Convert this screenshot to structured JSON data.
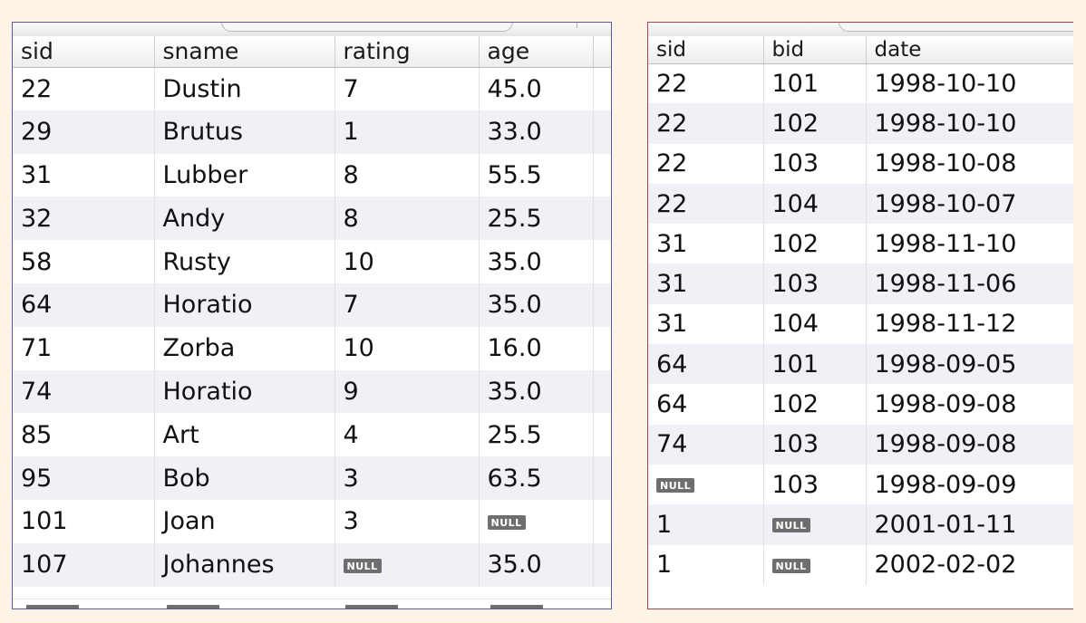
{
  "null_label": "NULL",
  "sailors_table": {
    "columns": [
      "sid",
      "sname",
      "rating",
      "age"
    ],
    "rows": [
      [
        "22",
        "Dustin",
        "7",
        "45.0"
      ],
      [
        "29",
        "Brutus",
        "1",
        "33.0"
      ],
      [
        "31",
        "Lubber",
        "8",
        "55.5"
      ],
      [
        "32",
        "Andy",
        "8",
        "25.5"
      ],
      [
        "58",
        "Rusty",
        "10",
        "35.0"
      ],
      [
        "64",
        "Horatio",
        "7",
        "35.0"
      ],
      [
        "71",
        "Zorba",
        "10",
        "16.0"
      ],
      [
        "74",
        "Horatio",
        "9",
        "35.0"
      ],
      [
        "85",
        "Art",
        "4",
        "25.5"
      ],
      [
        "95",
        "Bob",
        "3",
        "63.5"
      ],
      [
        "101",
        "Joan",
        "3",
        null
      ],
      [
        "107",
        "Johannes",
        null,
        "35.0"
      ]
    ]
  },
  "reserves_table": {
    "columns": [
      "sid",
      "bid",
      "date"
    ],
    "rows": [
      [
        "22",
        "101",
        "1998-10-10"
      ],
      [
        "22",
        "102",
        "1998-10-10"
      ],
      [
        "22",
        "103",
        "1998-10-08"
      ],
      [
        "22",
        "104",
        "1998-10-07"
      ],
      [
        "31",
        "102",
        "1998-11-10"
      ],
      [
        "31",
        "103",
        "1998-11-06"
      ],
      [
        "31",
        "104",
        "1998-11-12"
      ],
      [
        "64",
        "101",
        "1998-09-05"
      ],
      [
        "64",
        "102",
        "1998-09-08"
      ],
      [
        "74",
        "103",
        "1998-09-08"
      ],
      [
        null,
        "103",
        "1998-09-09"
      ],
      [
        "1",
        null,
        "2001-01-11"
      ],
      [
        "1",
        null,
        "2002-02-02"
      ]
    ]
  },
  "colors": {
    "page_background": "#fdf3e6",
    "sailors_border": "#5a5aa8",
    "reserves_border": "#a8454a",
    "row_stripe": "#eff1f7",
    "null_badge": "#6e6e6e"
  }
}
